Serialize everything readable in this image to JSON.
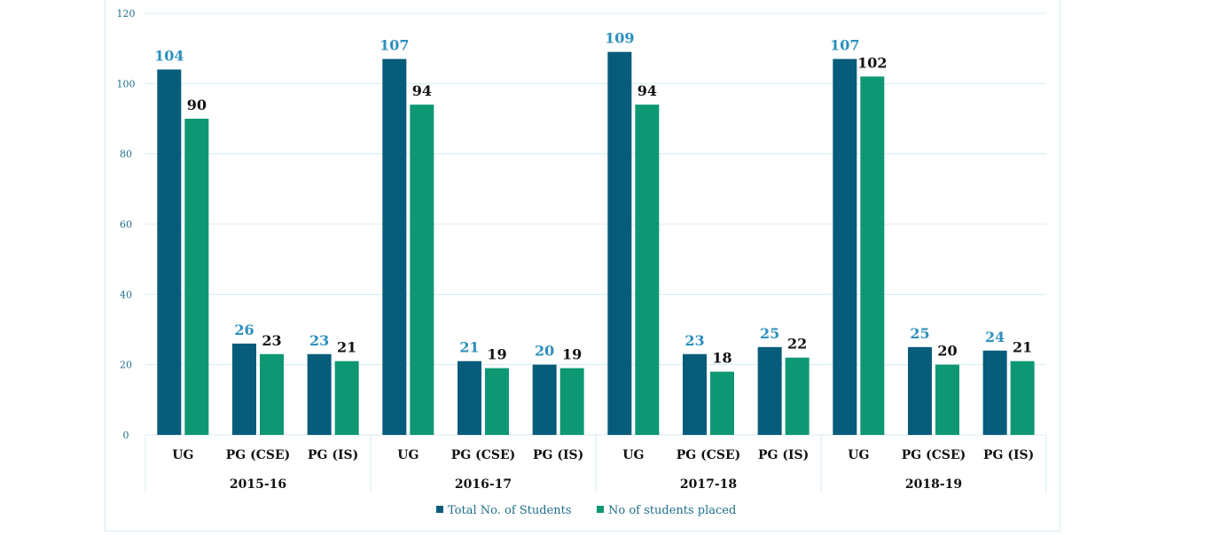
{
  "chart_data": {
    "type": "bar",
    "title": "",
    "xlabel": "",
    "ylabel": "",
    "ylim": [
      0,
      120
    ],
    "yticks": [
      0,
      20,
      40,
      60,
      80,
      100,
      120
    ],
    "grid": true,
    "legend_position": "bottom",
    "groups": [
      {
        "label": "2015-16",
        "categories": [
          "UG",
          "PG (CSE)",
          "PG (IS)"
        ],
        "series": [
          {
            "name": "Total No. of Students",
            "values": [
              104,
              26,
              23
            ]
          },
          {
            "name": "No of students placed",
            "values": [
              90,
              23,
              21
            ]
          }
        ]
      },
      {
        "label": "2016-17",
        "categories": [
          "UG",
          "PG (CSE)",
          "PG (IS)"
        ],
        "series": [
          {
            "name": "Total No. of Students",
            "values": [
              107,
              21,
              20
            ]
          },
          {
            "name": "No of students placed",
            "values": [
              94,
              19,
              19
            ]
          }
        ]
      },
      {
        "label": "2017-18",
        "categories": [
          "UG",
          "PG (CSE)",
          "PG (IS)"
        ],
        "series": [
          {
            "name": "Total No. of Students",
            "values": [
              109,
              23,
              25
            ]
          },
          {
            "name": "No of students placed",
            "values": [
              94,
              18,
              22
            ]
          }
        ]
      },
      {
        "label": "2018-19",
        "categories": [
          "UG",
          "PG (CSE)",
          "PG (IS)"
        ],
        "series": [
          {
            "name": "Total No. of Students",
            "values": [
              107,
              25,
              24
            ]
          },
          {
            "name": "No of students placed",
            "values": [
              102,
              20,
              21
            ]
          }
        ]
      }
    ],
    "legend": [
      {
        "name": "Total No. of  Students",
        "color": "#075c7a"
      },
      {
        "name": "No of students placed",
        "color": "#0d9873"
      }
    ]
  },
  "colors": {
    "total": "#075c7a",
    "placed": "#0d9873",
    "grid": "#d5ecf4",
    "value_total": "#2c8fbd",
    "value_placed": "#111111"
  }
}
